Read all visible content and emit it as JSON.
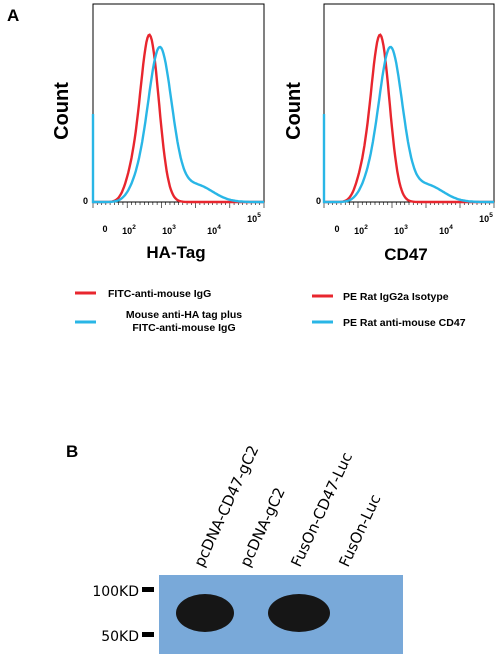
{
  "panel_a": {
    "letter": "A",
    "plots": [
      {
        "ylabel": "Count",
        "xlabel": "HA-Tag",
        "zero_label": "0",
        "x_tick_labels": [
          {
            "base": "0",
            "sup": ""
          },
          {
            "base": "10",
            "sup": "2"
          },
          {
            "base": "10",
            "sup": "3"
          },
          {
            "base": "10",
            "sup": "4"
          },
          {
            "base": "10",
            "sup": "5"
          }
        ],
        "legend": [
          {
            "label": "FITC-anti-mouse IgG",
            "color": "#e8262e"
          },
          {
            "label": "Mouse anti-HA tag plus",
            "label2": "FITC-anti-mouse IgG",
            "color": "#29b6e6"
          }
        ]
      },
      {
        "ylabel": "Count",
        "xlabel": "CD47",
        "zero_label": "0",
        "x_tick_labels": [
          {
            "base": "0",
            "sup": ""
          },
          {
            "base": "10",
            "sup": "2"
          },
          {
            "base": "10",
            "sup": "3"
          },
          {
            "base": "10",
            "sup": "4"
          },
          {
            "base": "10",
            "sup": "5"
          }
        ],
        "legend": [
          {
            "label": "PE Rat IgG2a Isotype",
            "color": "#e8262e"
          },
          {
            "label": "PE Rat anti-mouse CD47",
            "color": "#29b6e6"
          }
        ]
      }
    ]
  },
  "panel_b": {
    "letter": "B",
    "lanes": [
      "pcDNA-CD47-gC2",
      "pcDNA-gC2",
      "FusOn-CD47-Luc",
      "FusOn-Luc"
    ],
    "markers": [
      "100KD",
      "50KD"
    ],
    "band_present": [
      true,
      false,
      true,
      false
    ],
    "membrane_color": "#79a9d9",
    "band_color": "#161616"
  },
  "colors": {
    "isotype_red": "#e8262e",
    "stained_blue": "#29b6e6"
  }
}
